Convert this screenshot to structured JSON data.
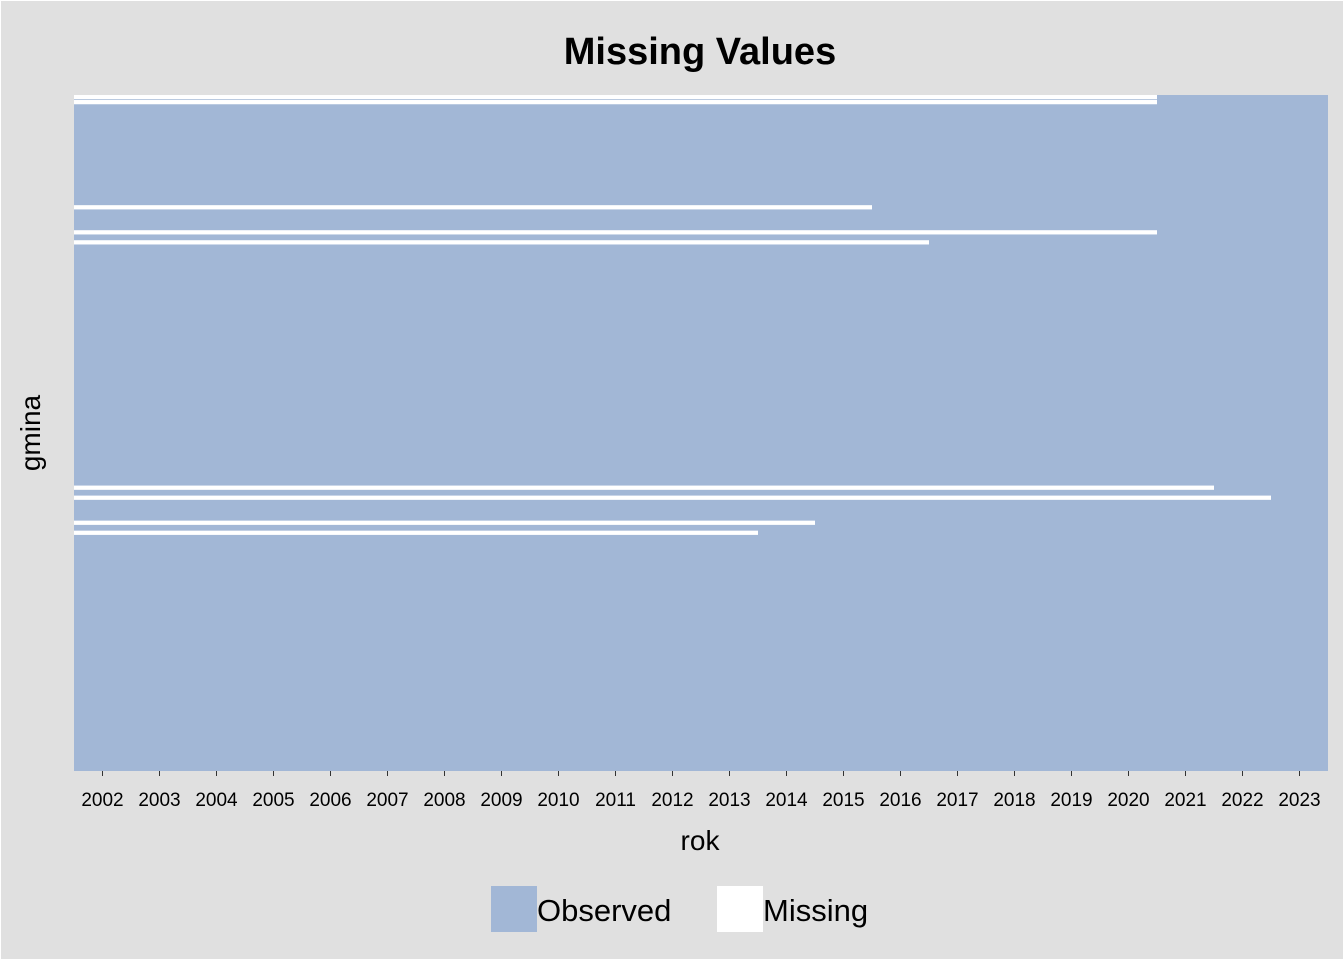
{
  "chart_data": {
    "type": "heatmap",
    "title": "Missing Values",
    "xlabel": "rok",
    "ylabel": "gmina",
    "x_categories": [
      "2002",
      "2003",
      "2004",
      "2005",
      "2006",
      "2007",
      "2008",
      "2009",
      "2010",
      "2011",
      "2012",
      "2013",
      "2014",
      "2015",
      "2016",
      "2017",
      "2018",
      "2019",
      "2020",
      "2021",
      "2022",
      "2023"
    ],
    "row_count": 135,
    "missing_rows": [
      {
        "row": 0,
        "observed_from": "2021"
      },
      {
        "row": 1,
        "observed_from": "2021"
      },
      {
        "row": 22,
        "observed_from": "2016"
      },
      {
        "row": 27,
        "observed_from": "2021"
      },
      {
        "row": 29,
        "observed_from": "2017"
      },
      {
        "row": 78,
        "observed_from": "2022"
      },
      {
        "row": 80,
        "observed_from": "2023"
      },
      {
        "row": 85,
        "observed_from": "2015"
      },
      {
        "row": 87,
        "observed_from": "2014"
      }
    ],
    "legend": {
      "position": "bottom",
      "items": [
        {
          "label": "Observed",
          "color": "#a2b7d6"
        },
        {
          "label": "Missing",
          "color": "#ffffff"
        }
      ]
    },
    "colors": {
      "background": "#e0e0e0",
      "observed": "#a2b7d6",
      "missing": "#ffffff"
    },
    "grid": false
  }
}
